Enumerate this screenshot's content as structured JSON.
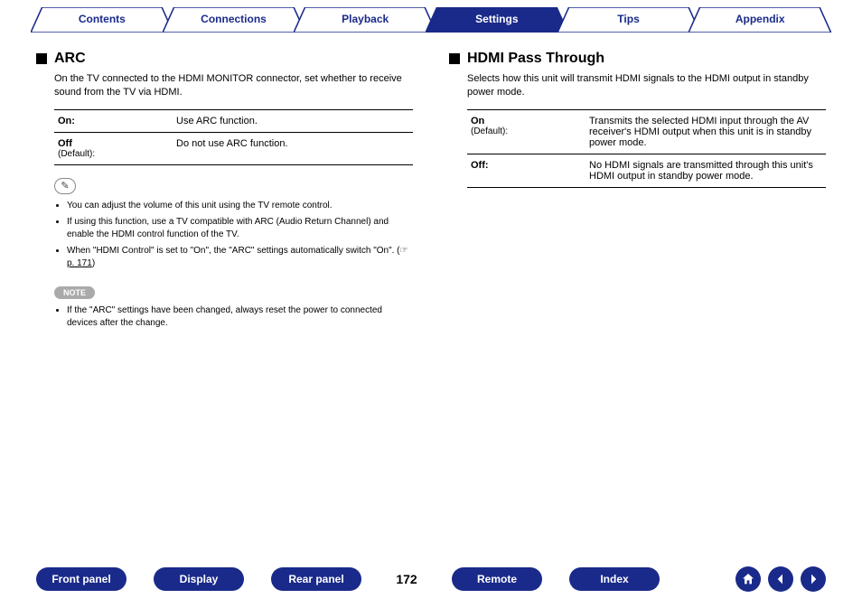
{
  "colors": {
    "brand": "#1a2a8a",
    "tabStroke": "#1a2a8a",
    "noteBg": "#aaaaaa"
  },
  "topnav": {
    "items": [
      "Contents",
      "Connections",
      "Playback",
      "Settings",
      "Tips",
      "Appendix"
    ],
    "activeIndex": 3
  },
  "left": {
    "title": "ARC",
    "desc": "On the TV connected to the HDMI MONITOR connector, set whether to receive sound from the TV via HDMI.",
    "rows": [
      {
        "label": "On:",
        "sub": "",
        "text": "Use ARC function."
      },
      {
        "label": "Off",
        "sub": "(Default):",
        "text": "Do not use ARC function."
      }
    ],
    "bullets": [
      "You can adjust the volume of this unit using the TV remote control.",
      "If using this function, use a TV compatible with ARC (Audio Return Channel) and enable the HDMI control function of the TV.",
      "When \"HDMI Control\" is set to \"On\", the \"ARC\" settings automatically switch \"On\".  (☞ p. 171)"
    ],
    "pageref": " p. 171",
    "noteLabel": "NOTE",
    "noteBullets": [
      "If the \"ARC\" settings have been changed, always reset the power to connected devices after the change."
    ]
  },
  "right": {
    "title": "HDMI Pass Through",
    "desc": "Selects how this unit will transmit HDMI signals to the HDMI output in standby power mode.",
    "rows": [
      {
        "label": "On",
        "sub": "(Default):",
        "text": "Transmits the selected HDMI input through the AV receiver's HDMI output when this unit is in standby power mode."
      },
      {
        "label": "Off:",
        "sub": "",
        "text": "No HDMI signals are transmitted through this unit's HDMI output in standby power mode."
      }
    ]
  },
  "bottomnav": {
    "pills": [
      "Front panel",
      "Display",
      "Rear panel"
    ],
    "page": "172",
    "pills2": [
      "Remote",
      "Index"
    ]
  }
}
